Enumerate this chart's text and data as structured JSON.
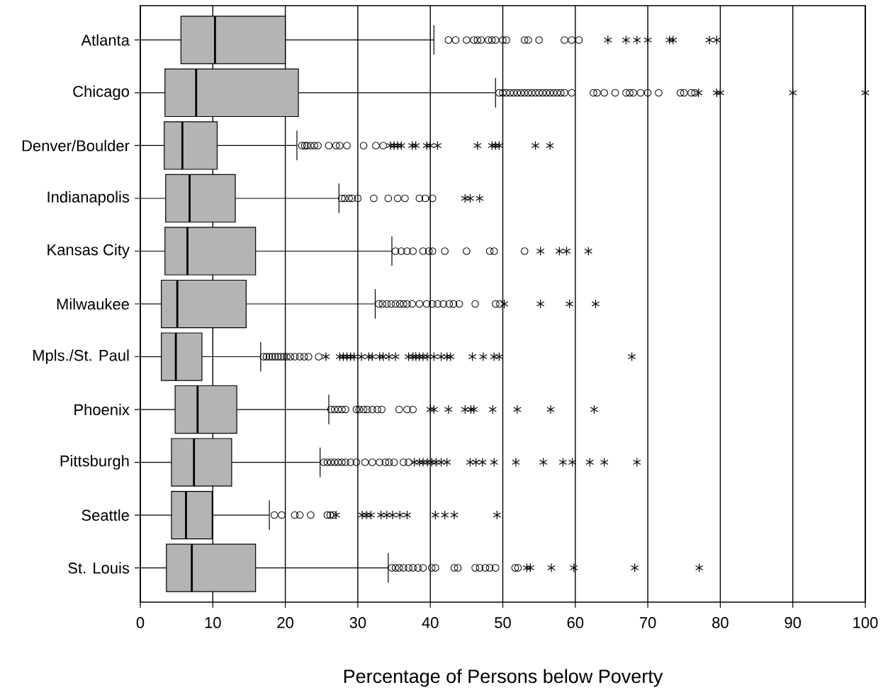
{
  "chart_data": {
    "type": "box",
    "orientation": "horizontal",
    "xlabel": "Percentage of Persons below Poverty",
    "categories": [
      "Atlanta",
      "Chicago",
      "Denver/Boulder",
      "Indianapolis",
      "Kansas City",
      "Milwaukee",
      "Mpls./St. Paul",
      "Phoenix",
      "Pittsburgh",
      "Seattle",
      "St. Louis"
    ],
    "xlim": [
      0,
      100
    ],
    "xticks": [
      0,
      10,
      20,
      30,
      40,
      50,
      60,
      70,
      80,
      90,
      100
    ],
    "grid": "x",
    "series": [
      {
        "type": "box",
        "color": "#b4b4b4",
        "boxes": [
          {
            "low": 0,
            "q1": 5.6,
            "median": 10.3,
            "q3": 20.0,
            "high": 40.5,
            "outliers": [
              42.5,
              43.5,
              45,
              46,
              46.5,
              47,
              48,
              48.5,
              49,
              50,
              50.5,
              53,
              53.5,
              55,
              58.5,
              59.5,
              60.5
            ]
          },
          {
            "low": 0,
            "q1": 3.4,
            "median": 7.7,
            "q3": 21.8,
            "high": 49,
            "outliers": [
              49.5,
              50,
              50.5,
              51,
              51.5,
              52,
              52.5,
              53,
              53.5,
              54,
              54.5,
              55,
              55.5,
              56,
              56.5,
              57,
              57.5,
              58,
              58.5,
              59.5,
              62.5,
              63,
              64,
              65.5,
              67,
              67.5,
              68,
              69,
              70,
              71.5,
              74.5,
              75,
              76,
              76.5
            ]
          },
          {
            "low": 0,
            "q1": 3.3,
            "median": 5.8,
            "q3": 10.6,
            "high": 21.6,
            "outliers": [
              22.3,
              22.7,
              23,
              23.5,
              24,
              24.5,
              26,
              27,
              27.5,
              28.5,
              30.8,
              32.5,
              33.5
            ]
          },
          {
            "low": 0,
            "q1": 3.5,
            "median": 6.8,
            "q3": 13.1,
            "high": 27.4,
            "outliers": [
              27.8,
              28.2,
              28.8,
              29.2,
              30,
              32.2,
              34.2,
              35.5,
              36.5,
              38.5,
              39.3,
              40.3
            ]
          },
          {
            "low": 0,
            "q1": 3.4,
            "median": 6.5,
            "q3": 15.9,
            "high": 34.7,
            "outliers": [
              35.2,
              36,
              36.8,
              37.6,
              39,
              39.8,
              40.3,
              42,
              45,
              48.2,
              48.8,
              53
            ]
          },
          {
            "low": 0,
            "q1": 2.9,
            "median": 5.1,
            "q3": 14.6,
            "high": 32.4,
            "outliers": [
              32.9,
              33.4,
              34,
              34.6,
              35.2,
              35.8,
              36.3,
              36.8,
              37.5,
              38.5,
              39.5,
              40.3,
              41,
              41.8,
              42.6,
              43.2,
              44,
              46.2,
              49,
              49.6
            ]
          },
          {
            "low": 0,
            "q1": 2.9,
            "median": 4.9,
            "q3": 8.5,
            "high": 16.6,
            "outliers": [
              17,
              17.4,
              17.8,
              18.2,
              18.6,
              19,
              19.4,
              19.8,
              20.2,
              20.7,
              21.3,
              22,
              22.6,
              23.2,
              24.6
            ]
          },
          {
            "low": 0,
            "q1": 4.8,
            "median": 7.9,
            "q3": 13.3,
            "high": 26,
            "outliers": [
              26.3,
              26.8,
              27.3,
              27.8,
              28.3,
              29.8,
              30.2,
              30.8,
              31.3,
              32,
              32.7,
              33.3,
              35.7,
              36.8,
              37.6
            ]
          },
          {
            "low": 0,
            "q1": 4.3,
            "median": 7.4,
            "q3": 12.6,
            "high": 24.8,
            "outliers": [
              25.3,
              25.8,
              26.3,
              26.8,
              27.3,
              27.8,
              28.3,
              29,
              29.8,
              31,
              32,
              33,
              33.8,
              34.3,
              35,
              36.3,
              37
            ]
          },
          {
            "low": 0,
            "q1": 4.3,
            "median": 6.3,
            "q3": 9.9,
            "high": 17.8,
            "outliers": [
              18.5,
              19.5,
              21.3,
              22,
              23.5,
              25.8,
              26.2,
              26.6
            ]
          },
          {
            "low": 0,
            "q1": 3.6,
            "median": 7.1,
            "q3": 15.9,
            "high": 34.2,
            "outliers": [
              34.7,
              35.2,
              35.7,
              36.3,
              37,
              37.6,
              38.3,
              39,
              40.2,
              40.7,
              43.3,
              43.8,
              46.2,
              46.8,
              47.6,
              48.2,
              49,
              51.7,
              52.1
            ]
          }
        ]
      },
      {
        "type": "scatter",
        "marker": "cross",
        "color": "#000000",
        "x": [
          "Atlanta",
          "Atlanta",
          "Atlanta",
          "Atlanta",
          "Atlanta",
          "Atlanta",
          "Atlanta",
          "Atlanta",
          "Chicago",
          "Chicago",
          "Chicago",
          "Chicago",
          "Chicago",
          "Denver/Boulder",
          "Denver/Boulder",
          "Denver/Boulder",
          "Denver/Boulder",
          "Denver/Boulder",
          "Denver/Boulder",
          "Denver/Boulder",
          "Denver/Boulder",
          "Denver/Boulder",
          "Denver/Boulder",
          "Denver/Boulder",
          "Denver/Boulder",
          "Denver/Boulder",
          "Denver/Boulder",
          "Denver/Boulder",
          "Indianapolis",
          "Indianapolis",
          "Indianapolis",
          "Kansas City",
          "Kansas City",
          "Kansas City",
          "Kansas City",
          "Milwaukee",
          "Milwaukee",
          "Milwaukee",
          "Milwaukee",
          "Mpls./St. Paul",
          "Mpls./St. Paul",
          "Mpls./St. Paul",
          "Mpls./St. Paul",
          "Mpls./St. Paul",
          "Mpls./St. Paul",
          "Mpls./St. Paul",
          "Mpls./St. Paul",
          "Mpls./St. Paul",
          "Mpls./St. Paul",
          "Mpls./St. Paul",
          "Mpls./St. Paul",
          "Mpls./St. Paul",
          "Mpls./St. Paul",
          "Mpls./St. Paul",
          "Mpls./St. Paul",
          "Mpls./St. Paul",
          "Mpls./St. Paul",
          "Mpls./St. Paul",
          "Mpls./St. Paul",
          "Mpls./St. Paul",
          "Mpls./St. Paul",
          "Mpls./St. Paul",
          "Mpls./St. Paul",
          "Mpls./St. Paul",
          "Mpls./St. Paul",
          "Mpls./St. Paul",
          "Mpls./St. Paul",
          "Phoenix",
          "Phoenix",
          "Phoenix",
          "Phoenix",
          "Phoenix",
          "Phoenix",
          "Phoenix",
          "Phoenix",
          "Phoenix",
          "Phoenix",
          "Pittsburgh",
          "Pittsburgh",
          "Pittsburgh",
          "Pittsburgh",
          "Pittsburgh",
          "Pittsburgh",
          "Pittsburgh",
          "Pittsburgh",
          "Pittsburgh",
          "Pittsburgh",
          "Pittsburgh",
          "Pittsburgh",
          "Pittsburgh",
          "Pittsburgh",
          "Pittsburgh",
          "Pittsburgh",
          "Pittsburgh",
          "Pittsburgh",
          "Pittsburgh",
          "Seattle",
          "Seattle",
          "Seattle",
          "Seattle",
          "Seattle",
          "Seattle",
          "Seattle",
          "Seattle",
          "Seattle",
          "Seattle",
          "Seattle",
          "Seattle",
          "Seattle",
          "St. Louis",
          "St. Louis",
          "St. Louis",
          "St. Louis",
          "St. Louis",
          "St. Louis"
        ],
        "values": [
          64.5,
          67,
          68.5,
          70,
          73,
          73.5,
          78.5,
          79.5,
          77,
          79.5,
          80,
          90,
          100,
          34.5,
          35,
          35.5,
          36,
          37.5,
          38,
          39.5,
          40,
          41,
          46.5,
          48.5,
          49,
          49.5,
          54.5,
          56.5,
          44.8,
          45.5,
          46.8,
          55.2,
          57.8,
          58.8,
          61.8,
          50.2,
          55.2,
          59.2,
          62.8,
          25.6,
          27.5,
          28,
          28.5,
          29,
          29.5,
          30.5,
          31.5,
          32,
          33,
          33.5,
          34.3,
          35.2,
          37,
          37.6,
          38,
          38.5,
          39,
          39.6,
          40.5,
          41.5,
          42.3,
          42.8,
          45.8,
          47.3,
          48.8,
          49.5,
          67.8,
          40,
          40.5,
          42.5,
          44.8,
          45.6,
          46,
          48.6,
          52,
          56.6,
          62.6,
          37.8,
          38.5,
          39,
          39.6,
          40.2,
          40.8,
          41.5,
          42.3,
          45.5,
          46.3,
          47.2,
          48.8,
          51.8,
          55.6,
          58.3,
          59.6,
          62,
          64,
          68.5,
          27,
          30.6,
          31.2,
          31.8,
          33.2,
          34,
          34.8,
          35.8,
          36.8,
          40.7,
          42,
          43.3,
          49.2,
          53.3,
          53.8,
          56.7,
          59.8,
          68.2,
          77.1
        ]
      }
    ]
  }
}
